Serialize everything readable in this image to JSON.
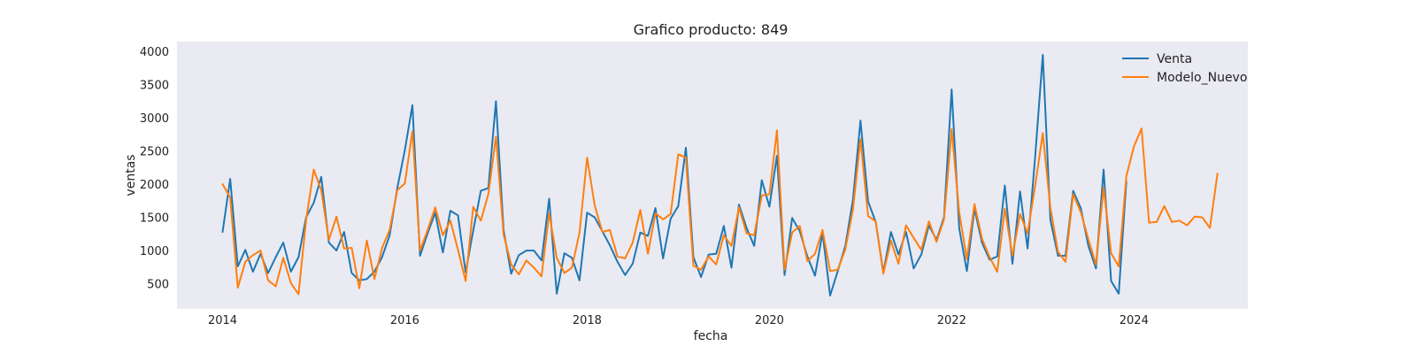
{
  "chart_data": {
    "type": "line",
    "title": "Grafico producto: 849",
    "xlabel": "fecha",
    "ylabel": "ventas",
    "xlim": [
      "2013-07-01",
      "2025-04-01"
    ],
    "ylim": [
      120,
      4150
    ],
    "x_ticks": [
      "2014",
      "2016",
      "2018",
      "2020",
      "2022",
      "2024"
    ],
    "y_ticks": [
      500,
      1000,
      1500,
      2000,
      2500,
      3000,
      3500,
      4000
    ],
    "grid": false,
    "legend_position": "top-right",
    "series": [
      {
        "name": "Venta",
        "color": "#1f77b4",
        "start": "2014-01",
        "values": [
          1280,
          2080,
          760,
          1010,
          680,
          950,
          660,
          900,
          1120,
          680,
          900,
          1500,
          1720,
          2110,
          1120,
          1000,
          1280,
          660,
          550,
          570,
          680,
          900,
          1230,
          1940,
          2510,
          3190,
          920,
          1260,
          1570,
          970,
          1600,
          1530,
          670,
          1300,
          1900,
          1940,
          3250,
          1310,
          650,
          930,
          1000,
          1000,
          850,
          1780,
          350,
          960,
          890,
          550,
          1570,
          1500,
          1290,
          1080,
          830,
          630,
          800,
          1270,
          1220,
          1640,
          880,
          1480,
          1670,
          2550,
          900,
          600,
          940,
          950,
          1370,
          740,
          1690,
          1340,
          1070,
          2060,
          1660,
          2430,
          630,
          1490,
          1290,
          910,
          620,
          1270,
          320,
          690,
          1070,
          1770,
          2960,
          1740,
          1430,
          670,
          1280,
          940,
          1280,
          730,
          940,
          1380,
          1160,
          1500,
          3430,
          1330,
          690,
          1630,
          1120,
          860,
          910,
          1980,
          800,
          1890,
          1030,
          2420,
          3950,
          1460,
          920,
          920,
          1900,
          1640,
          1070,
          730,
          2220,
          540,
          350,
          2040
        ]
      },
      {
        "name": "Modelo_Nuevo",
        "color": "#ff7f0e",
        "start": "2014-01",
        "values": [
          2000,
          1800,
          440,
          830,
          930,
          1000,
          550,
          460,
          890,
          510,
          340,
          1460,
          2220,
          1910,
          1160,
          1510,
          1030,
          1040,
          430,
          1150,
          570,
          1040,
          1310,
          1910,
          2010,
          2800,
          1000,
          1310,
          1650,
          1230,
          1450,
          1010,
          540,
          1660,
          1450,
          1850,
          2720,
          1240,
          790,
          640,
          850,
          740,
          610,
          1560,
          890,
          660,
          740,
          1270,
          2400,
          1680,
          1280,
          1310,
          910,
          880,
          1120,
          1610,
          950,
          1560,
          1470,
          1550,
          2450,
          2400,
          770,
          710,
          910,
          790,
          1230,
          1070,
          1650,
          1260,
          1230,
          1830,
          1850,
          2810,
          710,
          1270,
          1370,
          840,
          950,
          1310,
          690,
          710,
          1020,
          1620,
          2680,
          1520,
          1440,
          650,
          1150,
          800,
          1380,
          1190,
          1010,
          1440,
          1130,
          1470,
          2830,
          1570,
          870,
          1700,
          1180,
          900,
          680,
          1630,
          920,
          1550,
          1260,
          1980,
          2770,
          1640,
          980,
          830,
          1850,
          1580,
          1170,
          790,
          1950,
          960,
          760,
          2120,
          2570,
          2840,
          1420,
          1430,
          1670,
          1430,
          1450,
          1380,
          1510,
          1500,
          1340,
          2160
        ]
      }
    ]
  }
}
